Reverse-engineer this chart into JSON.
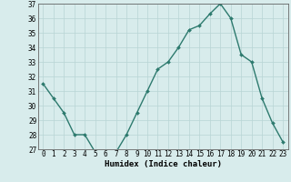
{
  "x": [
    0,
    1,
    2,
    3,
    4,
    5,
    6,
    7,
    8,
    9,
    10,
    11,
    12,
    13,
    14,
    15,
    16,
    17,
    18,
    19,
    20,
    21,
    22,
    23
  ],
  "y": [
    31.5,
    30.5,
    29.5,
    28.0,
    28.0,
    26.8,
    26.7,
    26.8,
    28.0,
    29.5,
    31.0,
    32.5,
    33.0,
    34.0,
    35.2,
    35.5,
    36.3,
    37.0,
    36.0,
    33.5,
    33.0,
    30.5,
    28.8,
    27.5
  ],
  "line_color": "#2d7a6e",
  "marker": "D",
  "marker_size": 2.0,
  "bg_color": "#d8ecec",
  "grid_color": "#b8d4d4",
  "xlabel": "Humidex (Indice chaleur)",
  "ylim": [
    27,
    37
  ],
  "xlim_min": -0.5,
  "xlim_max": 23.5,
  "yticks": [
    27,
    28,
    29,
    30,
    31,
    32,
    33,
    34,
    35,
    36,
    37
  ],
  "xticks": [
    0,
    1,
    2,
    3,
    4,
    5,
    6,
    7,
    8,
    9,
    10,
    11,
    12,
    13,
    14,
    15,
    16,
    17,
    18,
    19,
    20,
    21,
    22,
    23
  ],
  "tick_fontsize": 5.5,
  "xlabel_fontsize": 6.5,
  "line_width": 1.0
}
